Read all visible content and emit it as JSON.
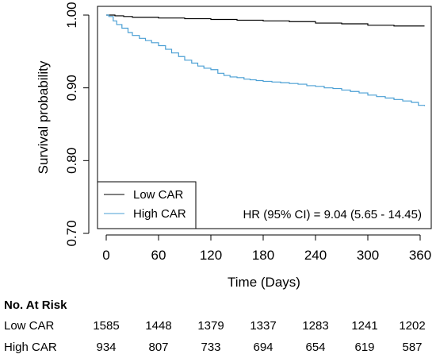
{
  "chart_data": {
    "type": "line",
    "step": true,
    "ylabel": "Survival probability",
    "xlabel": "Time (Days)",
    "xlim": [
      0,
      365
    ],
    "ylim": [
      0.69,
      1.0
    ],
    "x_ticks": [
      0,
      60,
      120,
      180,
      240,
      300,
      360
    ],
    "y_ticks": [
      0.7,
      0.8,
      0.9,
      1.0
    ],
    "y_tick_labels": [
      "0.70",
      "0.80",
      "0.90",
      "1.00"
    ],
    "grid": false,
    "legend_position": "bottom-left",
    "annotation": "HR (95% CI) = 9.04 (5.65 - 14.45)",
    "series": [
      {
        "name": "Low CAR",
        "color": "#000000",
        "x": [
          0,
          5,
          10,
          20,
          30,
          60,
          90,
          120,
          150,
          180,
          210,
          240,
          270,
          300,
          330,
          365
        ],
        "y": [
          1.0,
          1.0,
          0.999,
          0.998,
          0.997,
          0.996,
          0.995,
          0.994,
          0.993,
          0.992,
          0.991,
          0.989,
          0.988,
          0.986,
          0.985,
          0.985
        ]
      },
      {
        "name": "High CAR",
        "color": "#4a9fd4",
        "x": [
          0,
          3,
          8,
          12,
          18,
          25,
          30,
          38,
          45,
          52,
          60,
          68,
          75,
          83,
          90,
          98,
          105,
          112,
          120,
          128,
          135,
          142,
          150,
          158,
          165,
          172,
          180,
          190,
          200,
          210,
          220,
          230,
          240,
          250,
          260,
          270,
          280,
          290,
          300,
          310,
          320,
          330,
          340,
          350,
          358,
          365
        ],
        "y": [
          1.0,
          0.998,
          0.992,
          0.987,
          0.982,
          0.976,
          0.972,
          0.968,
          0.965,
          0.962,
          0.958,
          0.953,
          0.948,
          0.943,
          0.938,
          0.934,
          0.93,
          0.927,
          0.925,
          0.92,
          0.917,
          0.915,
          0.914,
          0.912,
          0.911,
          0.91,
          0.909,
          0.908,
          0.907,
          0.906,
          0.905,
          0.903,
          0.902,
          0.9,
          0.899,
          0.897,
          0.895,
          0.893,
          0.89,
          0.888,
          0.886,
          0.884,
          0.882,
          0.88,
          0.876,
          0.875
        ]
      }
    ]
  },
  "risk_table": {
    "title": "No. At Risk",
    "rows": [
      {
        "label": "Low CAR",
        "values": [
          "1585",
          "1448",
          "1379",
          "1337",
          "1283",
          "1241",
          "1202"
        ]
      },
      {
        "label": "High CAR",
        "values": [
          "934",
          "807",
          "733",
          "694",
          "654",
          "619",
          "587"
        ]
      }
    ]
  }
}
